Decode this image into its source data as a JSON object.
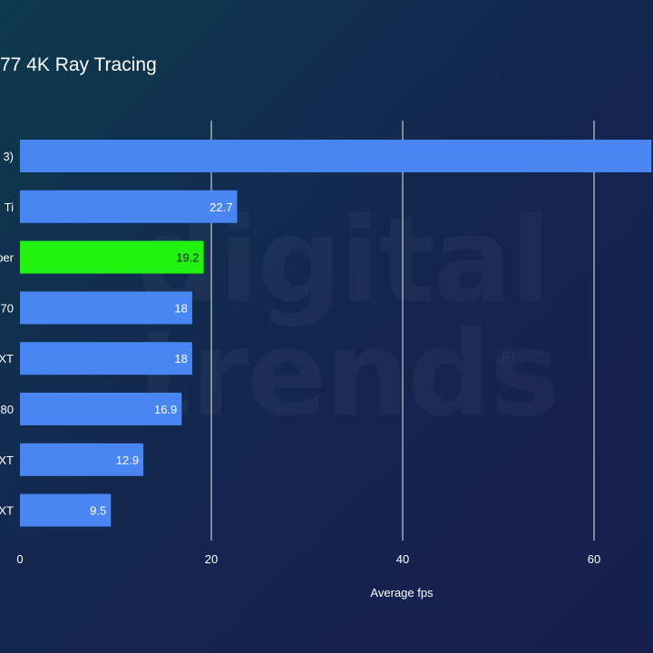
{
  "watermark": {
    "line1": "digital",
    "line2": "trends",
    "mark": "®"
  },
  "chart_data": {
    "type": "bar",
    "orientation": "horizontal",
    "title": "77 4K Ray Tracing",
    "xlabel": "Average fps",
    "ylabel": "",
    "xlim": [
      0,
      66
    ],
    "xticks": [
      0,
      20,
      40,
      60
    ],
    "grid": true,
    "categories": [
      "3)",
      "Ti",
      "per",
      "70",
      "XT",
      "80",
      "XT",
      "XT"
    ],
    "values": [
      66,
      22.7,
      19.2,
      18,
      18,
      16.9,
      12.9,
      9.5
    ],
    "value_labels": [
      "",
      "22.7",
      "19.2",
      "18",
      "18",
      "16.9",
      "12.9",
      "9.5"
    ],
    "highlight_index": 2,
    "colors": {
      "bar": "#4a86f2",
      "highlight": "#22f20f",
      "grid": "#e8eaf0",
      "label": "#ffffff",
      "highlight_label": "#1a1a1a"
    }
  }
}
